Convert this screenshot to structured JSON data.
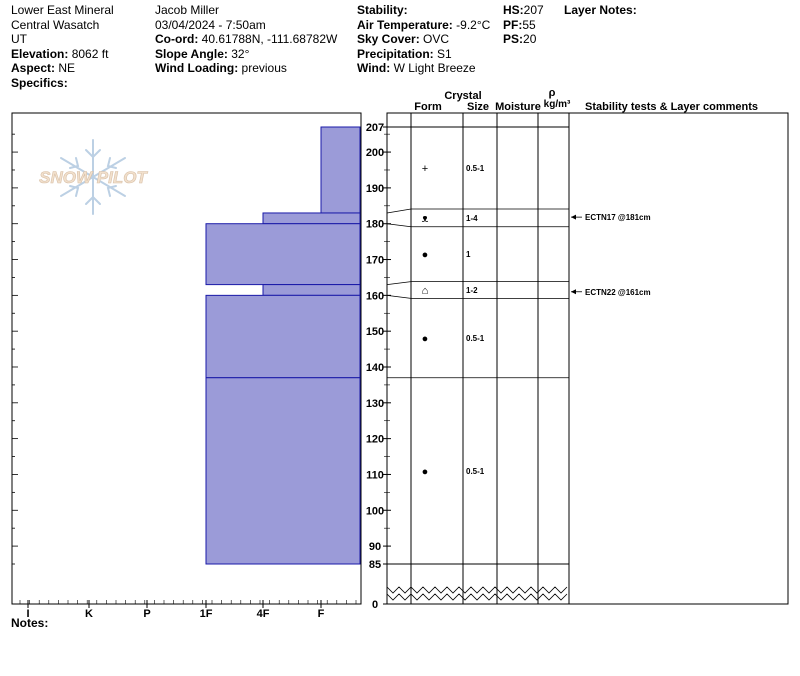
{
  "header": {
    "col1": {
      "location": "Lower East Mineral",
      "range": "Central Wasatch",
      "state": "UT",
      "elevation_label": "Elevation:",
      "elevation": "8062 ft",
      "aspect_label": "Aspect:",
      "aspect": "NE",
      "specifics_label": "Specifics:"
    },
    "col2": {
      "observer": "Jacob Miller",
      "datetime": "03/04/2024 - 7:50am",
      "coord_label": "Co-ord:",
      "coord": "40.61788N, -111.68782W",
      "slope_label": "Slope Angle:",
      "slope": "32°",
      "wind_loading_label": "Wind Loading:",
      "wind_loading": "previous"
    },
    "col3": {
      "stability_label": "Stability:",
      "air_temp_label": "Air Temperature:",
      "air_temp": "-9.2°C",
      "sky_label": "Sky Cover:",
      "sky": "OVC",
      "precip_label": "Precipitation:",
      "precip": "S1",
      "wind_label": "Wind:",
      "wind": "W Light Breeze"
    },
    "col4": {
      "hs_label": "HS:",
      "hs": "207",
      "pf_label": "PF:",
      "pf": "55",
      "ps_label": "PS:",
      "ps": "20"
    },
    "layer_notes_label": "Layer Notes:"
  },
  "columns": {
    "crystal": "Crystal",
    "form": "Form",
    "size": "Size",
    "moisture": "Moisture",
    "rho": "ρ",
    "density_unit": "kg/m³",
    "stability_tests": "Stability tests & Layer comments"
  },
  "notes_label": "Notes:",
  "logo_text": "SNOW PILOT",
  "colors": {
    "hardness_fill": "#9b9bd8",
    "hardness_stroke": "#1a1aa8",
    "logo_blue": "#bcd0e4",
    "logo_text": "#f2e0cc"
  },
  "chart_data": {
    "type": "bar",
    "title": "",
    "ylabel": "",
    "xlabel": "",
    "hardness_scale": [
      "I",
      "K",
      "P",
      "1F",
      "4F",
      "F"
    ],
    "height_ticks": [
      85,
      90,
      100,
      110,
      120,
      130,
      140,
      150,
      160,
      170,
      180,
      190,
      200,
      207,
      0
    ],
    "ylim": [
      0,
      207
    ],
    "hardness_profile": [
      {
        "top": 207,
        "bottom": 183,
        "hardness": "F"
      },
      {
        "top": 183,
        "bottom": 180,
        "hardness": "4F"
      },
      {
        "top": 180,
        "bottom": 163,
        "hardness": "1F"
      },
      {
        "top": 163,
        "bottom": 160,
        "hardness": "4F"
      },
      {
        "top": 160,
        "bottom": 137,
        "hardness": "1F"
      },
      {
        "top": 137,
        "bottom": 85,
        "hardness": "1F"
      }
    ],
    "layers": [
      {
        "top": 207,
        "bottom": 183,
        "form": "+",
        "size": "0.5-1"
      },
      {
        "top": 183,
        "bottom": 180,
        "form": "ᴥ",
        "size": "1-4"
      },
      {
        "top": 180,
        "bottom": 163,
        "form": "●",
        "size": "1"
      },
      {
        "top": 163,
        "bottom": 160,
        "form": "⌂",
        "size": "1-2"
      },
      {
        "top": 160,
        "bottom": 137,
        "form": "●",
        "size": "0.5-1"
      },
      {
        "top": 137,
        "bottom": 85,
        "form": "●",
        "size": "0.5-1"
      }
    ],
    "stability_tests": [
      {
        "label": "ECTN17 @181cm",
        "height": 181
      },
      {
        "label": "ECTN22 @161cm",
        "height": 161
      }
    ]
  }
}
